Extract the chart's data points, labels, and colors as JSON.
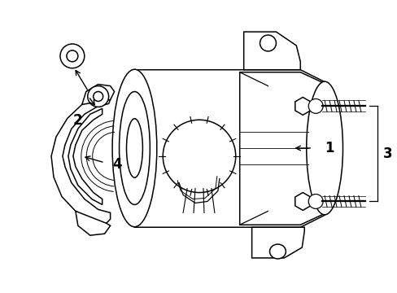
{
  "background_color": "#ffffff",
  "line_color": "#000000",
  "line_width": 1.1,
  "figsize": [
    4.89,
    3.6
  ],
  "dpi": 100
}
